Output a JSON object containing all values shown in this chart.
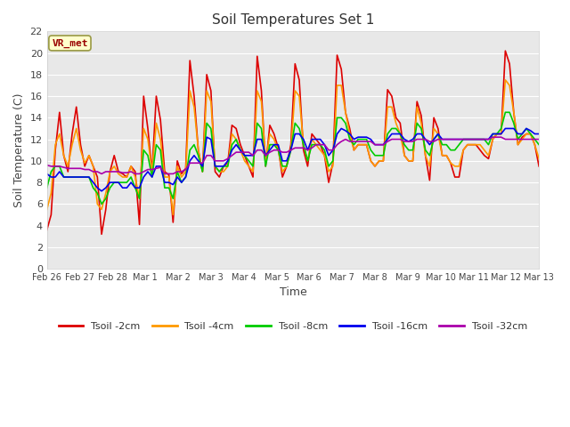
{
  "title": "Soil Temperatures Set 1",
  "xlabel": "Time",
  "ylabel": "Soil Temperature (C)",
  "ylim": [
    0,
    22
  ],
  "yticks": [
    0,
    2,
    4,
    6,
    8,
    10,
    12,
    14,
    16,
    18,
    20,
    22
  ],
  "annotation": "VR_met",
  "fig_bg_color": "#ffffff",
  "plot_bg_color": "#e8e8e8",
  "grid_color": "#ffffff",
  "series": {
    "Tsoil -2cm": {
      "color": "#dd0000",
      "lw": 1.2
    },
    "Tsoil -4cm": {
      "color": "#ff9900",
      "lw": 1.2
    },
    "Tsoil -8cm": {
      "color": "#00cc00",
      "lw": 1.2
    },
    "Tsoil -16cm": {
      "color": "#0000ee",
      "lw": 1.2
    },
    "Tsoil -32cm": {
      "color": "#aa00aa",
      "lw": 1.2
    }
  },
  "x_tick_labels": [
    "Feb 26",
    "Feb 27",
    "Feb 28",
    "Mar 1",
    "Mar 2",
    "Mar 3",
    "Mar 4",
    "Mar 5",
    "Mar 6",
    "Mar 7",
    "Mar 8",
    "Mar 9",
    "Mar 10",
    "Mar 11",
    "Mar 12",
    "Mar 13"
  ],
  "t2cm": [
    3.6,
    5.0,
    11.0,
    14.5,
    10.5,
    9.0,
    12.5,
    15.0,
    11.5,
    9.5,
    10.5,
    9.5,
    8.5,
    3.2,
    5.5,
    9.0,
    10.5,
    9.0,
    8.8,
    8.5,
    9.5,
    9.0,
    4.1,
    16.0,
    13.0,
    9.0,
    16.0,
    13.8,
    9.0,
    8.7,
    4.3,
    10.0,
    8.8,
    9.3,
    19.3,
    16.0,
    11.0,
    9.0,
    18.0,
    16.5,
    9.0,
    8.5,
    9.5,
    9.8,
    13.3,
    13.0,
    11.5,
    10.5,
    9.5,
    8.5,
    19.7,
    16.5,
    9.5,
    13.3,
    12.5,
    11.2,
    8.5,
    9.5,
    11.5,
    19.0,
    17.5,
    11.0,
    9.5,
    12.5,
    12.0,
    11.5,
    10.5,
    8.0,
    9.8,
    19.8,
    18.5,
    14.5,
    13.0,
    11.0,
    11.5,
    11.5,
    11.5,
    10.0,
    9.5,
    10.0,
    10.0,
    16.6,
    16.0,
    14.0,
    13.5,
    10.5,
    10.0,
    10.0,
    15.5,
    14.2,
    10.5,
    8.2,
    14.0,
    13.0,
    10.5,
    10.5,
    9.8,
    8.5,
    8.5,
    11.0,
    11.5,
    11.5,
    11.5,
    11.0,
    10.5,
    10.2,
    12.0,
    12.5,
    12.5,
    20.2,
    19.0,
    14.5,
    11.5,
    12.2,
    12.5,
    12.5,
    11.5,
    9.5
  ],
  "t4cm": [
    5.5,
    7.0,
    11.5,
    12.5,
    10.5,
    9.5,
    11.5,
    13.0,
    11.0,
    9.8,
    10.5,
    9.5,
    6.0,
    5.5,
    7.0,
    9.0,
    9.5,
    8.8,
    8.5,
    8.5,
    9.5,
    8.5,
    6.5,
    13.0,
    12.0,
    9.0,
    13.5,
    12.0,
    8.5,
    8.5,
    5.0,
    9.5,
    8.5,
    9.0,
    16.5,
    15.0,
    11.0,
    9.0,
    16.5,
    15.5,
    9.5,
    9.0,
    9.0,
    9.5,
    12.5,
    12.0,
    11.0,
    10.0,
    9.5,
    9.0,
    16.5,
    15.5,
    10.0,
    12.5,
    12.0,
    11.0,
    9.0,
    9.5,
    11.0,
    16.5,
    16.0,
    11.5,
    10.0,
    12.0,
    11.5,
    11.0,
    10.5,
    9.0,
    9.5,
    17.0,
    17.0,
    14.5,
    12.5,
    11.0,
    11.5,
    11.5,
    11.5,
    10.0,
    9.5,
    10.0,
    10.0,
    15.0,
    15.0,
    13.5,
    12.5,
    10.5,
    10.0,
    10.0,
    15.0,
    13.5,
    10.5,
    9.5,
    13.0,
    12.5,
    10.5,
    10.5,
    9.8,
    9.5,
    9.5,
    11.0,
    11.5,
    11.5,
    11.5,
    11.5,
    11.0,
    10.5,
    12.0,
    12.5,
    12.5,
    17.5,
    17.0,
    14.5,
    11.5,
    12.0,
    12.5,
    12.5,
    11.5,
    10.2
  ],
  "t8cm": [
    7.5,
    9.0,
    9.5,
    9.5,
    8.5,
    8.5,
    8.5,
    8.5,
    8.5,
    8.5,
    8.5,
    7.5,
    7.0,
    6.0,
    6.5,
    7.5,
    8.0,
    8.0,
    8.0,
    8.0,
    8.5,
    7.5,
    6.5,
    11.0,
    10.5,
    8.5,
    11.5,
    11.0,
    7.5,
    7.5,
    6.5,
    9.0,
    8.0,
    8.5,
    11.0,
    11.5,
    10.5,
    9.0,
    13.5,
    13.0,
    9.5,
    9.0,
    9.5,
    9.5,
    11.5,
    12.0,
    11.0,
    10.5,
    10.0,
    9.5,
    13.5,
    13.0,
    9.5,
    11.5,
    11.5,
    11.0,
    9.5,
    9.5,
    11.0,
    13.5,
    13.0,
    11.5,
    10.0,
    11.5,
    11.5,
    11.5,
    11.0,
    9.5,
    10.0,
    14.0,
    14.0,
    13.5,
    12.0,
    11.5,
    12.0,
    12.0,
    12.0,
    11.0,
    10.5,
    10.5,
    10.5,
    12.5,
    13.0,
    13.0,
    12.5,
    11.5,
    11.0,
    11.0,
    13.5,
    13.0,
    11.0,
    10.5,
    12.0,
    12.5,
    11.5,
    11.5,
    11.0,
    11.0,
    11.5,
    12.0,
    12.0,
    12.0,
    12.0,
    12.0,
    12.0,
    11.5,
    12.5,
    12.5,
    13.0,
    14.5,
    14.5,
    13.5,
    12.0,
    12.5,
    13.0,
    12.5,
    12.0,
    11.5
  ],
  "t16cm": [
    8.8,
    8.5,
    8.5,
    9.0,
    8.5,
    8.5,
    8.5,
    8.5,
    8.5,
    8.5,
    8.5,
    8.0,
    7.5,
    7.2,
    7.5,
    8.0,
    8.0,
    8.0,
    7.5,
    7.5,
    8.0,
    7.5,
    7.5,
    8.5,
    9.0,
    8.5,
    9.5,
    9.5,
    8.0,
    8.0,
    7.8,
    8.5,
    8.0,
    8.5,
    10.0,
    10.5,
    10.0,
    9.5,
    12.2,
    12.0,
    9.5,
    9.5,
    9.5,
    10.0,
    11.0,
    11.5,
    11.0,
    10.5,
    10.5,
    10.5,
    12.0,
    12.0,
    10.5,
    11.0,
    11.5,
    11.5,
    10.0,
    10.0,
    11.0,
    12.5,
    12.5,
    12.0,
    11.0,
    12.0,
    12.0,
    12.0,
    11.5,
    10.5,
    11.0,
    12.5,
    13.0,
    12.8,
    12.5,
    12.0,
    12.2,
    12.2,
    12.2,
    12.0,
    11.5,
    11.5,
    11.5,
    12.0,
    12.5,
    12.5,
    12.5,
    12.0,
    11.8,
    12.0,
    12.5,
    12.5,
    12.0,
    11.5,
    12.0,
    12.5,
    12.0,
    12.0,
    12.0,
    12.0,
    12.0,
    12.0,
    12.0,
    12.0,
    12.0,
    12.0,
    12.0,
    12.0,
    12.5,
    12.5,
    12.5,
    13.0,
    13.0,
    13.0,
    12.5,
    12.5,
    13.0,
    12.8,
    12.5,
    12.5
  ],
  "t32cm": [
    9.6,
    9.5,
    9.5,
    9.5,
    9.4,
    9.3,
    9.3,
    9.3,
    9.3,
    9.2,
    9.2,
    9.0,
    9.0,
    8.8,
    9.0,
    9.0,
    9.0,
    9.0,
    8.9,
    8.9,
    9.0,
    8.8,
    8.8,
    9.0,
    9.2,
    9.2,
    9.3,
    9.4,
    8.8,
    8.8,
    8.8,
    9.0,
    9.0,
    9.2,
    9.8,
    9.8,
    9.8,
    9.8,
    10.5,
    10.5,
    10.0,
    10.0,
    10.0,
    10.2,
    10.5,
    10.8,
    10.8,
    10.8,
    10.8,
    10.5,
    11.0,
    11.0,
    10.5,
    10.8,
    11.0,
    11.0,
    10.8,
    10.8,
    11.0,
    11.2,
    11.2,
    11.2,
    11.0,
    11.2,
    11.5,
    11.5,
    11.5,
    11.0,
    11.0,
    11.5,
    11.8,
    12.0,
    11.8,
    11.8,
    11.8,
    11.8,
    11.8,
    11.8,
    11.5,
    11.5,
    11.5,
    11.8,
    12.0,
    12.0,
    12.0,
    11.8,
    11.8,
    11.8,
    12.0,
    12.0,
    12.0,
    11.8,
    11.8,
    12.0,
    12.0,
    12.0,
    12.0,
    12.0,
    12.0,
    12.0,
    12.0,
    12.0,
    12.0,
    12.0,
    12.0,
    12.0,
    12.2,
    12.2,
    12.2,
    12.0,
    12.0,
    12.0,
    12.0,
    12.0,
    12.0,
    12.0,
    12.0,
    12.0
  ]
}
